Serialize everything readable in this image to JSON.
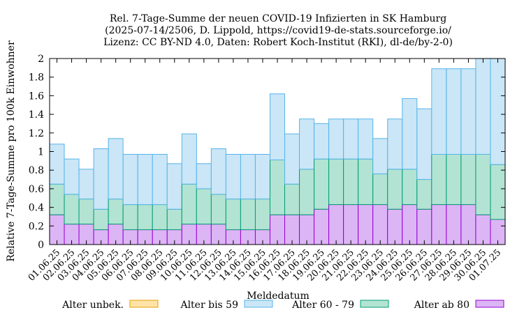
{
  "chart_data": {
    "type": "bar",
    "stacked": true,
    "title": [
      "Rel. 7-Tage-Summe der neuen COVID-19 Infizierten in SK Hamburg",
      "(2025-07-14/2506, D. Lippold, https://covid19-de-stats.sourceforge.io/",
      "Lizenz: CC BY-ND 4.0, Daten: Robert Koch-Institut (RKI), dl-de/by-2-0)"
    ],
    "xlabel": "Meldedatum",
    "ylabel": "Relative 7-Tage-Summe pro 100k Einwohner",
    "ylim": [
      0,
      2
    ],
    "yticks": [
      0,
      0.2,
      0.4,
      0.6,
      0.8,
      1,
      1.2,
      1.4,
      1.6,
      1.8,
      2
    ],
    "ytick_labels": [
      "0",
      "0.2",
      "0.4",
      "0.6",
      "0.8",
      "1",
      "1.2",
      "1.4",
      "1.6",
      "1.8",
      "2"
    ],
    "grid": false,
    "legend_position": "bottom",
    "categories": [
      "01.06.25",
      "02.06.25",
      "03.06.25",
      "04.06.25",
      "05.06.25",
      "06.06.25",
      "07.06.25",
      "08.06.25",
      "09.06.25",
      "10.06.25",
      "11.06.25",
      "12.06.25",
      "13.06.25",
      "14.06.25",
      "15.06.25",
      "16.06.25",
      "17.06.25",
      "18.06.25",
      "19.06.25",
      "20.06.25",
      "21.06.25",
      "22.06.25",
      "23.06.25",
      "24.06.25",
      "25.06.25",
      "26.06.25",
      "27.06.25",
      "28.06.25",
      "29.06.25",
      "30.06.25",
      "01.07.25"
    ],
    "series": [
      {
        "name": "Alter ab 80",
        "color": "#dcb5f5",
        "stroke": "#9400d3",
        "values": [
          0.32,
          0.22,
          0.22,
          0.16,
          0.22,
          0.16,
          0.16,
          0.16,
          0.16,
          0.22,
          0.22,
          0.22,
          0.16,
          0.16,
          0.16,
          0.32,
          0.32,
          0.32,
          0.38,
          0.43,
          0.43,
          0.43,
          0.43,
          0.38,
          0.43,
          0.38,
          0.43,
          0.43,
          0.43,
          0.32,
          0.27
        ]
      },
      {
        "name": "Alter 60 - 79",
        "color": "#b3e3d3",
        "stroke": "#009e73",
        "values": [
          0.33,
          0.32,
          0.27,
          0.22,
          0.27,
          0.27,
          0.27,
          0.27,
          0.22,
          0.43,
          0.38,
          0.32,
          0.33,
          0.33,
          0.33,
          0.59,
          0.33,
          0.49,
          0.54,
          0.49,
          0.49,
          0.49,
          0.33,
          0.43,
          0.38,
          0.32,
          0.54,
          0.54,
          0.54,
          0.65,
          0.59
        ]
      },
      {
        "name": "Alter bis 59",
        "color": "#cae6f7",
        "stroke": "#56b4e9",
        "values": [
          0.43,
          0.38,
          0.32,
          0.65,
          0.65,
          0.54,
          0.54,
          0.54,
          0.49,
          0.54,
          0.27,
          0.49,
          0.48,
          0.48,
          0.48,
          0.71,
          0.54,
          0.54,
          0.38,
          0.43,
          0.43,
          0.43,
          0.38,
          0.54,
          0.76,
          0.76,
          0.92,
          0.92,
          0.92,
          1.03,
          1.14
        ]
      },
      {
        "name": "Alter unbek.",
        "color": "#fde3a7",
        "stroke": "#e69f00",
        "values": [
          0,
          0,
          0,
          0,
          0,
          0,
          0,
          0,
          0,
          0,
          0,
          0,
          0,
          0,
          0,
          0,
          0,
          0,
          0,
          0,
          0,
          0,
          0,
          0,
          0,
          0,
          0,
          0,
          0,
          0,
          0
        ]
      }
    ],
    "legend_order": [
      "Alter unbek.",
      "Alter bis 59",
      "Alter 60 - 79",
      "Alter ab 80"
    ]
  }
}
